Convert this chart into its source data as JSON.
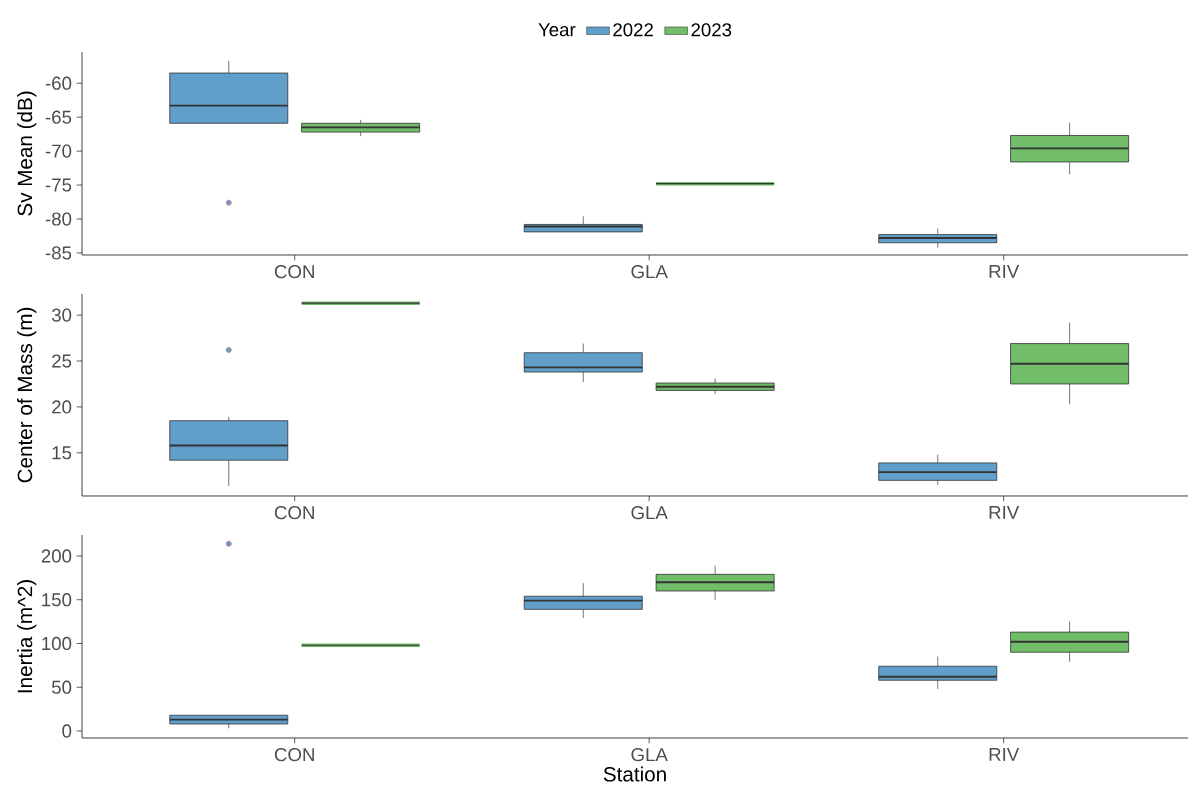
{
  "chart_data": [
    {
      "type": "box",
      "ylabel": "Sv Mean (dB)",
      "legend_title": "Year",
      "legend": "top",
      "categories": [
        "CON",
        "GLA",
        "RIV"
      ],
      "ylim": [
        -85.3,
        -55.4
      ],
      "yticks": [
        -60,
        -65,
        -70,
        -75,
        -80,
        -85
      ],
      "series": [
        {
          "name": "2022",
          "color": "#619fcb",
          "boxes": [
            {
              "low": -65.9,
              "q1": -65.9,
              "median": -63.3,
              "q3": -58.5,
              "high": -56.7,
              "outliers": [
                -77.6
              ]
            },
            {
              "low": -82.1,
              "q1": -81.9,
              "median": -81.1,
              "q3": -80.8,
              "high": -79.6
            },
            {
              "low": -84.2,
              "q1": -83.5,
              "median": -82.8,
              "q3": -82.3,
              "high": -81.4
            }
          ]
        },
        {
          "name": "2023",
          "color": "#71bd6a",
          "boxes": [
            {
              "low": -67.8,
              "q1": -67.2,
              "median": -66.5,
              "q3": -65.9,
              "high": -65.4
            },
            {
              "low": -74.8,
              "q1": -74.8,
              "median": -74.8,
              "q3": -74.8,
              "high": -74.8
            },
            {
              "low": -73.4,
              "q1": -71.6,
              "median": -69.6,
              "q3": -67.7,
              "high": -65.8
            }
          ]
        }
      ]
    },
    {
      "type": "box",
      "ylabel": "Center of Mass (m)",
      "categories": [
        "CON",
        "GLA",
        "RIV"
      ],
      "ylim": [
        10.3,
        32.3
      ],
      "yticks": [
        15,
        20,
        25,
        30
      ],
      "series": [
        {
          "color": "#619fcb",
          "boxes": [
            {
              "low": 11.4,
              "q1": 14.2,
              "median": 15.8,
              "q3": 18.5,
              "high": 18.9,
              "outliers": [
                26.2
              ]
            },
            {
              "low": 22.7,
              "q1": 23.8,
              "median": 24.3,
              "q3": 25.9,
              "high": 26.9
            },
            {
              "low": 11.5,
              "q1": 12.0,
              "median": 12.9,
              "q3": 13.9,
              "high": 14.8
            }
          ]
        },
        {
          "color": "#71bd6a",
          "boxes": [
            {
              "low": 31.3,
              "q1": 31.3,
              "median": 31.3,
              "q3": 31.3,
              "high": 31.3
            },
            {
              "low": 21.4,
              "q1": 21.8,
              "median": 22.2,
              "q3": 22.6,
              "high": 23.1
            },
            {
              "low": 20.3,
              "q1": 22.5,
              "median": 24.7,
              "q3": 26.9,
              "high": 29.2
            }
          ]
        }
      ]
    },
    {
      "type": "box",
      "ylabel": "Inertia (m^2)",
      "xlabel": "Station",
      "categories": [
        "CON",
        "GLA",
        "RIV"
      ],
      "ylim": [
        -8,
        224
      ],
      "yticks": [
        0,
        50,
        100,
        150,
        200
      ],
      "series": [
        {
          "color": "#619fcb",
          "boxes": [
            {
              "low": 3,
              "q1": 8,
              "median": 13,
              "q3": 18,
              "high": 18,
              "outliers": [
                214
              ]
            },
            {
              "low": 129,
              "q1": 139,
              "median": 149,
              "q3": 154,
              "high": 169
            },
            {
              "low": 48,
              "q1": 58,
              "median": 62,
              "q3": 74,
              "high": 85
            }
          ]
        },
        {
          "color": "#71bd6a",
          "boxes": [
            {
              "low": 98,
              "q1": 98,
              "median": 98,
              "q3": 98,
              "high": 98
            },
            {
              "low": 150,
              "q1": 160,
              "median": 170,
              "q3": 179,
              "high": 189
            },
            {
              "low": 79,
              "q1": 90,
              "median": 102,
              "q3": 113,
              "high": 125
            }
          ]
        }
      ]
    }
  ]
}
